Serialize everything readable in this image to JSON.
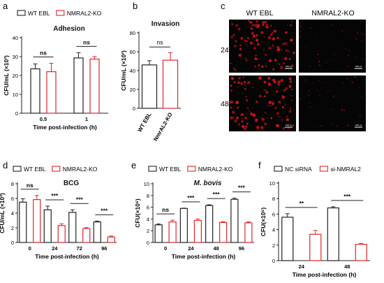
{
  "colors": {
    "wt": "#222222",
    "ko": "#e0262b",
    "micro_bg": "#050505",
    "micro_dot": "#d4131c"
  },
  "chart_data": [
    {
      "panel": "a",
      "type": "bar",
      "title": "Adhesion",
      "ylabel": "CFU/mL (×10³)",
      "xlabel": "Time post-infection (h)",
      "ylim": [
        0,
        40
      ],
      "yticks": [
        "0",
        "10",
        "20",
        "30",
        "40"
      ],
      "categories": [
        "0.5",
        "1"
      ],
      "series": [
        {
          "name": "WT EBL",
          "values": [
            23.5,
            29.3
          ],
          "errors": [
            2.6,
            2.8
          ]
        },
        {
          "name": "NMRAL2-KO",
          "values": [
            22.0,
            28.7
          ],
          "errors": [
            4.5,
            1.3
          ]
        }
      ],
      "significance": [
        "ns",
        "ns"
      ],
      "legend": "top"
    },
    {
      "panel": "b",
      "type": "bar",
      "title": "Invasion",
      "ylabel": "CFU/mL (×10²)",
      "xlabel": "",
      "ylim": [
        0,
        80
      ],
      "yticks": [
        "0",
        "20",
        "40",
        "60",
        "80"
      ],
      "categories": [
        "WT EBL",
        "NmrAL2-KO"
      ],
      "series": [
        {
          "values": [
            46,
            51
          ],
          "errors": [
            4.5,
            8
          ]
        }
      ],
      "significance": [
        "ns"
      ]
    },
    {
      "panel": "d",
      "type": "bar",
      "title": "BCG",
      "ylabel": "CFU/mL (×10³)",
      "xlabel": "Time post-infection (h)",
      "ylim": [
        0,
        8
      ],
      "yticks": [
        "0",
        "2",
        "4",
        "6",
        "8"
      ],
      "categories": [
        "0",
        "24",
        "72",
        "96"
      ],
      "series": [
        {
          "name": "WT EBL",
          "values": [
            5.5,
            4.45,
            4.1,
            2.8
          ],
          "errors": [
            0.45,
            0.5,
            0.35,
            0.12
          ]
        },
        {
          "name": "NMRAL2-KO",
          "values": [
            5.85,
            2.3,
            1.9,
            0.75
          ],
          "errors": [
            0.55,
            0.25,
            0.12,
            0.12
          ]
        }
      ],
      "significance": [
        "ns",
        "***",
        "***",
        "***"
      ],
      "legend": "top"
    },
    {
      "panel": "e",
      "type": "bar",
      "title": "M. bovis",
      "ylabel": "CFU(×10⁶)",
      "xlabel": "Time post-infection (h)",
      "ylim": [
        0,
        10
      ],
      "yticks": [
        "0",
        "2",
        "4",
        "6",
        "8",
        "10"
      ],
      "categories": [
        "0",
        "24",
        "48",
        "96"
      ],
      "series": [
        {
          "name": "WT EBL",
          "values": [
            3.0,
            5.8,
            6.3,
            7.35
          ],
          "errors": [
            0.15,
            0.05,
            0.12,
            0.2
          ]
        },
        {
          "name": "NMRAL2-KO",
          "values": [
            3.5,
            3.75,
            3.4,
            3.35
          ],
          "errors": [
            0.3,
            0.25,
            0.15,
            0.15
          ]
        }
      ],
      "significance": [
        "ns",
        "***",
        "***",
        "***"
      ],
      "legend": "top"
    },
    {
      "panel": "f",
      "type": "bar",
      "title": "",
      "ylabel": "CFU(×10⁶)",
      "xlabel": "Time post-infection (h)",
      "ylim": [
        0,
        10
      ],
      "yticks": [
        "0",
        "2",
        "4",
        "6",
        "8",
        "10"
      ],
      "categories": [
        "24",
        "48"
      ],
      "series": [
        {
          "name": "NC siRNA",
          "values": [
            5.6,
            6.8
          ],
          "errors": [
            0.45,
            0.15
          ]
        },
        {
          "name": "si-NMRAL2",
          "values": [
            3.4,
            2.1
          ],
          "errors": [
            0.5,
            0.1
          ]
        }
      ],
      "significance": [
        "**",
        "***"
      ],
      "legend": "top"
    }
  ],
  "micrograph": {
    "columns": [
      "WT EBL",
      "NMRAL2-KO"
    ],
    "rows": [
      "24hpi",
      "48hpi"
    ],
    "scale_bar": "1000 μm"
  },
  "panel_labels": [
    "a",
    "b",
    "c",
    "d",
    "e",
    "f"
  ]
}
